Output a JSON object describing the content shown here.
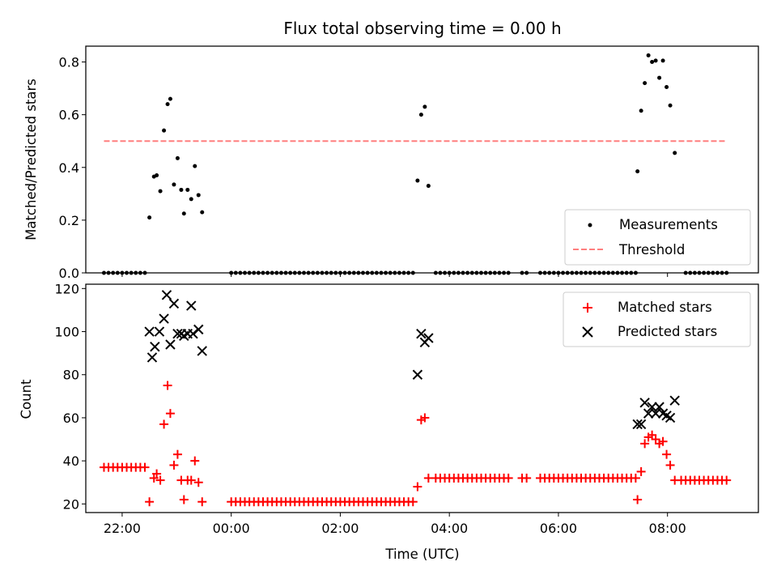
{
  "chart_data": [
    {
      "type": "scatter",
      "title": "Flux total observing time = 0.00 h",
      "xlabel": "",
      "ylabel": "Matched/Predicted stars",
      "xlim": [
        "21:20",
        "09:40"
      ],
      "ylim": [
        0,
        0.86
      ],
      "yticks": [
        0.0,
        0.2,
        0.4,
        0.6,
        0.8
      ],
      "ytick_labels": [
        "0.0",
        "0.2",
        "0.4",
        "0.6",
        "0.8"
      ],
      "legend": {
        "position": "lower-right",
        "entries": [
          "Measurements",
          "Threshold"
        ]
      },
      "series": [
        {
          "name": "Measurements",
          "marker": "dot",
          "color": "#000000",
          "segments": [
            {
              "range": [
                "21:40",
                "22:25"
              ],
              "step_min": 5,
              "y": 0.0
            },
            {
              "range": [
                "00:00",
                "03:20"
              ],
              "step_min": 5,
              "y": 0.0
            },
            {
              "range": [
                "03:45",
                "04:55"
              ],
              "step_min": 5,
              "y": 0.0
            },
            {
              "range": [
                "05:00",
                "05:05"
              ],
              "step_min": 5,
              "y": 0.0
            },
            {
              "range": [
                "05:20",
                "05:25"
              ],
              "step_min": 5,
              "y": 0.0
            },
            {
              "range": [
                "05:40",
                "07:25"
              ],
              "step_min": 5,
              "y": 0.0
            },
            {
              "range": [
                "08:20",
                "09:05"
              ],
              "step_min": 5,
              "y": 0.0
            }
          ],
          "points": [
            {
              "x": "22:30",
              "y": 0.21
            },
            {
              "x": "22:35",
              "y": 0.365
            },
            {
              "x": "22:38",
              "y": 0.37
            },
            {
              "x": "22:42",
              "y": 0.31
            },
            {
              "x": "22:46",
              "y": 0.54
            },
            {
              "x": "22:50",
              "y": 0.64
            },
            {
              "x": "22:53",
              "y": 0.66
            },
            {
              "x": "22:57",
              "y": 0.335
            },
            {
              "x": "23:01",
              "y": 0.435
            },
            {
              "x": "23:05",
              "y": 0.315
            },
            {
              "x": "23:08",
              "y": 0.225
            },
            {
              "x": "23:12",
              "y": 0.315
            },
            {
              "x": "23:16",
              "y": 0.28
            },
            {
              "x": "23:20",
              "y": 0.405
            },
            {
              "x": "23:24",
              "y": 0.295
            },
            {
              "x": "23:28",
              "y": 0.23
            },
            {
              "x": "03:25",
              "y": 0.35
            },
            {
              "x": "03:29",
              "y": 0.6
            },
            {
              "x": "03:33",
              "y": 0.63
            },
            {
              "x": "03:37",
              "y": 0.33
            },
            {
              "x": "07:27",
              "y": 0.385
            },
            {
              "x": "07:31",
              "y": 0.615
            },
            {
              "x": "07:35",
              "y": 0.72
            },
            {
              "x": "07:39",
              "y": 0.825
            },
            {
              "x": "07:43",
              "y": 0.8
            },
            {
              "x": "07:47",
              "y": 0.805
            },
            {
              "x": "07:51",
              "y": 0.74
            },
            {
              "x": "07:55",
              "y": 0.805
            },
            {
              "x": "07:59",
              "y": 0.705
            },
            {
              "x": "08:03",
              "y": 0.635
            },
            {
              "x": "08:08",
              "y": 0.455
            }
          ]
        },
        {
          "name": "Threshold",
          "type": "line",
          "style": "dashed",
          "color": "#ff7f7f",
          "points": [
            {
              "x": "21:40",
              "y": 0.5
            },
            {
              "x": "09:05",
              "y": 0.5
            }
          ]
        }
      ]
    },
    {
      "type": "scatter",
      "title": "",
      "xlabel": "Time (UTC)",
      "ylabel": "Count",
      "xlim": [
        "21:20",
        "09:40"
      ],
      "ylim": [
        16,
        122
      ],
      "xticks": [
        "22:00",
        "00:00",
        "02:00",
        "04:00",
        "06:00",
        "08:00"
      ],
      "yticks": [
        20,
        40,
        60,
        80,
        100,
        120
      ],
      "ytick_labels": [
        "20",
        "40",
        "60",
        "80",
        "100",
        "120"
      ],
      "legend": {
        "position": "upper-right",
        "entries": [
          "Matched stars",
          "Predicted stars"
        ]
      },
      "series": [
        {
          "name": "Matched stars",
          "marker": "plus",
          "color": "#ff0000",
          "segments": [
            {
              "range": [
                "21:40",
                "22:25"
              ],
              "step_min": 5,
              "y": 37
            },
            {
              "range": [
                "00:00",
                "03:20"
              ],
              "step_min": 5,
              "y": 21
            },
            {
              "range": [
                "03:45",
                "04:55"
              ],
              "step_min": 5,
              "y": 32
            },
            {
              "range": [
                "05:00",
                "05:05"
              ],
              "step_min": 5,
              "y": 32
            },
            {
              "range": [
                "05:20",
                "05:25"
              ],
              "step_min": 5,
              "y": 32
            },
            {
              "range": [
                "05:40",
                "07:25"
              ],
              "step_min": 5,
              "y": 32
            },
            {
              "range": [
                "08:20",
                "09:05"
              ],
              "step_min": 5,
              "y": 31
            }
          ],
          "points": [
            {
              "x": "22:30",
              "y": 21
            },
            {
              "x": "22:35",
              "y": 32
            },
            {
              "x": "22:38",
              "y": 34
            },
            {
              "x": "22:42",
              "y": 31
            },
            {
              "x": "22:46",
              "y": 57
            },
            {
              "x": "22:50",
              "y": 75
            },
            {
              "x": "22:53",
              "y": 62
            },
            {
              "x": "22:57",
              "y": 38
            },
            {
              "x": "23:01",
              "y": 43
            },
            {
              "x": "23:05",
              "y": 31
            },
            {
              "x": "23:08",
              "y": 22
            },
            {
              "x": "23:12",
              "y": 31
            },
            {
              "x": "23:16",
              "y": 31
            },
            {
              "x": "23:20",
              "y": 40
            },
            {
              "x": "23:24",
              "y": 30
            },
            {
              "x": "23:28",
              "y": 21
            },
            {
              "x": "03:25",
              "y": 28
            },
            {
              "x": "03:29",
              "y": 59
            },
            {
              "x": "03:33",
              "y": 60
            },
            {
              "x": "03:37",
              "y": 32
            },
            {
              "x": "07:27",
              "y": 22
            },
            {
              "x": "07:31",
              "y": 35
            },
            {
              "x": "07:35",
              "y": 48
            },
            {
              "x": "07:39",
              "y": 51
            },
            {
              "x": "07:43",
              "y": 52
            },
            {
              "x": "07:47",
              "y": 50
            },
            {
              "x": "07:51",
              "y": 48
            },
            {
              "x": "07:55",
              "y": 49
            },
            {
              "x": "07:59",
              "y": 43
            },
            {
              "x": "08:03",
              "y": 38
            },
            {
              "x": "08:08",
              "y": 31
            },
            {
              "x": "08:15",
              "y": 31
            }
          ]
        },
        {
          "name": "Predicted stars",
          "marker": "x",
          "color": "#000000",
          "points": [
            {
              "x": "22:30",
              "y": 100
            },
            {
              "x": "22:33",
              "y": 88
            },
            {
              "x": "22:36",
              "y": 93
            },
            {
              "x": "22:41",
              "y": 100
            },
            {
              "x": "22:46",
              "y": 106
            },
            {
              "x": "22:49",
              "y": 117
            },
            {
              "x": "22:53",
              "y": 94
            },
            {
              "x": "22:57",
              "y": 113
            },
            {
              "x": "23:01",
              "y": 99
            },
            {
              "x": "23:05",
              "y": 99
            },
            {
              "x": "23:08",
              "y": 98
            },
            {
              "x": "23:12",
              "y": 99
            },
            {
              "x": "23:16",
              "y": 112
            },
            {
              "x": "23:18",
              "y": 99
            },
            {
              "x": "23:24",
              "y": 101
            },
            {
              "x": "23:28",
              "y": 91
            },
            {
              "x": "03:25",
              "y": 80
            },
            {
              "x": "03:29",
              "y": 99
            },
            {
              "x": "03:33",
              "y": 95
            },
            {
              "x": "03:37",
              "y": 97
            },
            {
              "x": "07:27",
              "y": 57
            },
            {
              "x": "07:31",
              "y": 57
            },
            {
              "x": "07:35",
              "y": 67
            },
            {
              "x": "07:39",
              "y": 62
            },
            {
              "x": "07:43",
              "y": 65
            },
            {
              "x": "07:47",
              "y": 62
            },
            {
              "x": "07:51",
              "y": 65
            },
            {
              "x": "07:55",
              "y": 62
            },
            {
              "x": "07:59",
              "y": 61
            },
            {
              "x": "08:03",
              "y": 60
            },
            {
              "x": "08:08",
              "y": 68
            }
          ]
        }
      ]
    }
  ]
}
